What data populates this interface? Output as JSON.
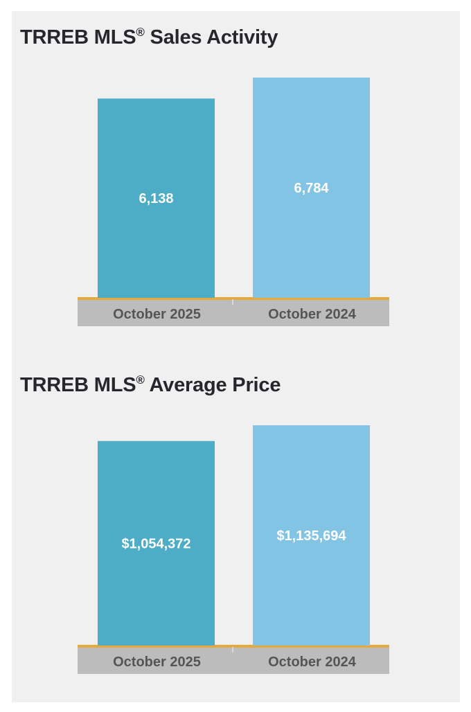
{
  "chart_data": [
    {
      "type": "bar",
      "title": "TRREB MLS",
      "title_mark": "®",
      "title_suffix": "Sales Activity",
      "categories": [
        "October 2025",
        "October 2024"
      ],
      "values": [
        6138,
        6784
      ],
      "value_labels": [
        "6,138",
        "6,784"
      ],
      "ylim": [
        0,
        6784
      ],
      "colors": [
        "#4dacc6",
        "#83c4e4"
      ],
      "axis_line_color": "#e6a93a",
      "xlabel": "",
      "ylabel": ""
    },
    {
      "type": "bar",
      "title": "TRREB MLS",
      "title_mark": "®",
      "title_suffix": "Average Price",
      "categories": [
        "October 2025",
        "October 2024"
      ],
      "values": [
        1054372,
        1135694
      ],
      "value_labels": [
        "$1,054,372",
        "$1,135,694"
      ],
      "ylim": [
        0,
        1135694
      ],
      "colors": [
        "#4dacc6",
        "#83c4e4"
      ],
      "axis_line_color": "#e6a93a",
      "xlabel": "",
      "ylabel": ""
    }
  ]
}
